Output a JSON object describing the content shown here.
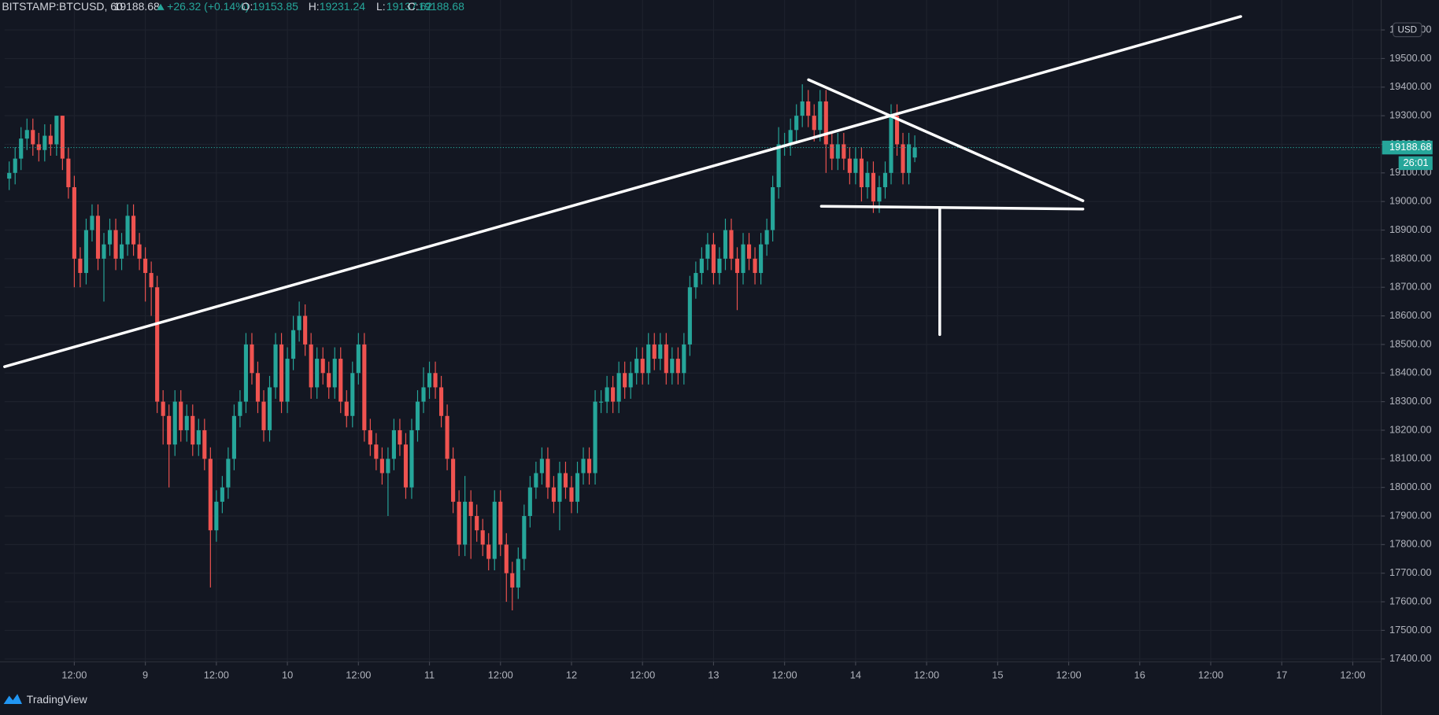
{
  "chart_data": {
    "type": "candlestick",
    "symbol": "BITSTAMP:BTCUSD, 60",
    "change": "+26.32 (+0.14%)",
    "ohlc_labels": [
      "O:",
      "H:",
      "L:",
      "C:"
    ],
    "currency": "USD",
    "countdown": "26:01",
    "brand": "TradingView",
    "up_color": "#26a69a",
    "down_color": "#ef5350",
    "grid": true,
    "xlim": [
      -0.78,
      231.8
    ],
    "xticks": [
      {
        "value": 11,
        "label": "12:00"
      },
      {
        "value": 23,
        "label": "9"
      },
      {
        "value": 35,
        "label": "12:00"
      },
      {
        "value": 47,
        "label": "10"
      },
      {
        "value": 59,
        "label": "12:00"
      },
      {
        "value": 71,
        "label": "11"
      },
      {
        "value": 83,
        "label": "12:00"
      },
      {
        "value": 95,
        "label": "12"
      },
      {
        "value": 107,
        "label": "12:00"
      },
      {
        "value": 119,
        "label": "13"
      },
      {
        "value": 131,
        "label": "12:00"
      },
      {
        "value": 143,
        "label": "14"
      },
      {
        "value": 155,
        "label": "12:00"
      },
      {
        "value": 167,
        "label": "15"
      },
      {
        "value": 179,
        "label": "12:00"
      },
      {
        "value": 191,
        "label": "16"
      },
      {
        "value": 203,
        "label": "12:00"
      },
      {
        "value": 215,
        "label": "17"
      },
      {
        "value": 227,
        "label": "12:00"
      }
    ],
    "ylim": [
      17390,
      19647
    ],
    "yticks": [
      {
        "value": 17400,
        "label": "17400.00"
      },
      {
        "value": 17500,
        "label": "17500.00"
      },
      {
        "value": 17600,
        "label": "17600.00"
      },
      {
        "value": 17700,
        "label": "17700.00"
      },
      {
        "value": 17800,
        "label": "17800.00"
      },
      {
        "value": 17900,
        "label": "17900.00"
      },
      {
        "value": 18000,
        "label": "18000.00"
      },
      {
        "value": 18100,
        "label": "18100.00"
      },
      {
        "value": 18200,
        "label": "18200.00"
      },
      {
        "value": 18300,
        "label": "18300.00"
      },
      {
        "value": 18400,
        "label": "18400.00"
      },
      {
        "value": 18500,
        "label": "18500.00"
      },
      {
        "value": 18600,
        "label": "18600.00"
      },
      {
        "value": 18700,
        "label": "18700.00"
      },
      {
        "value": 18800,
        "label": "18800.00"
      },
      {
        "value": 18900,
        "label": "18900.00"
      },
      {
        "value": 19000,
        "label": "19000.00"
      },
      {
        "value": 19100,
        "label": "19100.00"
      },
      {
        "value": 19200,
        "label": "19200.00"
      },
      {
        "value": 19300,
        "label": "19300.00"
      },
      {
        "value": 19400,
        "label": "19400.00"
      },
      {
        "value": 19500,
        "label": "19500.00"
      },
      {
        "value": 19600,
        "label": "19600.00"
      }
    ],
    "open": [
      19080,
      19100,
      19150,
      19220,
      19250,
      19200,
      19180,
      19230,
      19200,
      19300,
      19150,
      19050,
      18800,
      18750,
      18900,
      18950,
      18800,
      18850,
      18900,
      18800,
      18850,
      18950,
      18850,
      18800,
      18750,
      18700,
      18300,
      18250,
      18150,
      18300,
      18200,
      18250,
      18150,
      18200,
      18100,
      17850,
      17950,
      18000,
      18100,
      18250,
      18300,
      18500,
      18400,
      18300,
      18200,
      18350,
      18500,
      18300,
      18450,
      18550,
      18600,
      18500,
      18350,
      18450,
      18400,
      18350,
      18450,
      18300,
      18250,
      18400,
      18500,
      18200,
      18150,
      18100,
      18050,
      18100,
      18200,
      18150,
      18000,
      18200,
      18300,
      18350,
      18400,
      18350,
      18250,
      18100,
      17950,
      17800,
      17950,
      17900,
      17850,
      17800,
      17750,
      17950,
      17800,
      17700,
      17650,
      17750,
      17900,
      18000,
      18050,
      18100,
      18000,
      17950,
      18050,
      18000,
      17950,
      18050,
      18100,
      18050,
      18300,
      18300,
      18350,
      18300,
      18400,
      18350,
      18400,
      18450,
      18400,
      18500,
      18450,
      18500,
      18400,
      18450,
      18400,
      18500,
      18700,
      18750,
      18800,
      18850,
      18750,
      18800,
      18900,
      18800,
      18750,
      18850,
      18800,
      18750,
      18850,
      18900,
      19050,
      19200,
      19200,
      19250,
      19300,
      19350,
      19300,
      19250,
      19350,
      19200,
      19150,
      19200,
      19150,
      19100,
      19150,
      19050,
      19100,
      19000,
      19050,
      19100,
      19300,
      19200,
      19100,
      19153.85
    ],
    "high": [
      19140,
      19190,
      19260,
      19290,
      19290,
      19240,
      19270,
      19270,
      19300,
      19300,
      19190,
      19090,
      18840,
      18940,
      18990,
      18990,
      18890,
      18940,
      18940,
      18890,
      18990,
      18990,
      18890,
      18840,
      18790,
      18740,
      18340,
      18290,
      18340,
      18340,
      18290,
      18290,
      18240,
      18240,
      18140,
      17990,
      18040,
      18140,
      18290,
      18340,
      18540,
      18540,
      18440,
      18340,
      18390,
      18540,
      18540,
      18490,
      18600,
      18650,
      18640,
      18540,
      18490,
      18490,
      18440,
      18490,
      18490,
      18340,
      18440,
      18540,
      18540,
      18240,
      18190,
      18140,
      18140,
      18240,
      18240,
      18190,
      18240,
      18340,
      18420,
      18440,
      18440,
      18390,
      18290,
      18140,
      17990,
      18040,
      17990,
      17940,
      17890,
      17840,
      17990,
      17990,
      17840,
      17740,
      17790,
      17940,
      18040,
      18090,
      18140,
      18140,
      18040,
      18090,
      18090,
      18040,
      18090,
      18140,
      18140,
      18340,
      18340,
      18390,
      18390,
      18440,
      18440,
      18440,
      18490,
      18490,
      18540,
      18540,
      18540,
      18540,
      18490,
      18490,
      18540,
      18740,
      18790,
      18840,
      18890,
      18890,
      18840,
      18940,
      18940,
      18840,
      18890,
      18890,
      18840,
      18890,
      18940,
      19090,
      19260,
      19240,
      19290,
      19340,
      19410,
      19390,
      19340,
      19390,
      19390,
      19240,
      19240,
      19240,
      19190,
      19190,
      19190,
      19140,
      19140,
      19090,
      19140,
      19340,
      19340,
      19240,
      19240,
      19231.24
    ],
    "low": [
      19040,
      19060,
      19110,
      19180,
      19160,
      19140,
      19140,
      19160,
      19160,
      19110,
      19010,
      18700,
      18700,
      18710,
      18860,
      18760,
      18650,
      18810,
      18760,
      18760,
      18810,
      18810,
      18760,
      18650,
      18600,
      18260,
      18150,
      18000,
      18110,
      18160,
      18160,
      18110,
      18110,
      18060,
      17650,
      17810,
      17910,
      17960,
      18060,
      18210,
      18260,
      18360,
      18260,
      18160,
      18160,
      18310,
      18260,
      18260,
      18410,
      18510,
      18460,
      18310,
      18310,
      18360,
      18310,
      18310,
      18260,
      18210,
      18210,
      18360,
      18160,
      18110,
      18060,
      18010,
      17900,
      18060,
      18110,
      17960,
      17960,
      18160,
      18260,
      18310,
      18310,
      18210,
      18060,
      17910,
      17760,
      17760,
      17750,
      17810,
      17760,
      17710,
      17710,
      17760,
      17600,
      17570,
      17610,
      17710,
      17860,
      17960,
      18010,
      17960,
      17910,
      17850,
      17960,
      17910,
      17910,
      18010,
      18010,
      18010,
      18260,
      18260,
      18260,
      18260,
      18310,
      18310,
      18360,
      18360,
      18360,
      18410,
      18410,
      18360,
      18360,
      18360,
      18360,
      18460,
      18660,
      18710,
      18760,
      18710,
      18710,
      18760,
      18760,
      18620,
      18710,
      18760,
      18710,
      18710,
      18810,
      18860,
      19010,
      19160,
      19160,
      19210,
      19260,
      19260,
      19210,
      19210,
      19100,
      19110,
      19110,
      19110,
      19060,
      19060,
      19000,
      19010,
      18960,
      18960,
      19010,
      19060,
      19160,
      19060,
      19060,
      19137.62
    ],
    "close": [
      19100,
      19150,
      19220,
      19250,
      19200,
      19180,
      19230,
      19200,
      19300,
      19150,
      19050,
      18800,
      18750,
      18900,
      18950,
      18800,
      18850,
      18900,
      18800,
      18850,
      18950,
      18850,
      18800,
      18750,
      18700,
      18300,
      18250,
      18150,
      18300,
      18200,
      18250,
      18150,
      18200,
      18100,
      17850,
      17950,
      18000,
      18100,
      18250,
      18300,
      18500,
      18400,
      18300,
      18200,
      18350,
      18500,
      18300,
      18450,
      18550,
      18600,
      18500,
      18350,
      18450,
      18400,
      18350,
      18450,
      18300,
      18250,
      18400,
      18500,
      18200,
      18150,
      18100,
      18050,
      18100,
      18200,
      18150,
      18000,
      18200,
      18300,
      18350,
      18400,
      18350,
      18250,
      18100,
      17950,
      17800,
      17950,
      17900,
      17850,
      17800,
      17750,
      17950,
      17800,
      17700,
      17650,
      17750,
      17900,
      18000,
      18050,
      18100,
      18000,
      17950,
      18050,
      18000,
      17950,
      18050,
      18100,
      18050,
      18300,
      18300,
      18350,
      18300,
      18400,
      18350,
      18400,
      18450,
      18400,
      18500,
      18450,
      18500,
      18400,
      18450,
      18400,
      18500,
      18700,
      18750,
      18800,
      18850,
      18750,
      18800,
      18900,
      18800,
      18750,
      18850,
      18800,
      18750,
      18850,
      18900,
      19050,
      19200,
      19200,
      19250,
      19300,
      19350,
      19300,
      19250,
      19350,
      19200,
      19150,
      19200,
      19150,
      19100,
      19150,
      19050,
      19100,
      19000,
      19050,
      19100,
      19300,
      19200,
      19100,
      19200,
      19188.68
    ]
  }
}
